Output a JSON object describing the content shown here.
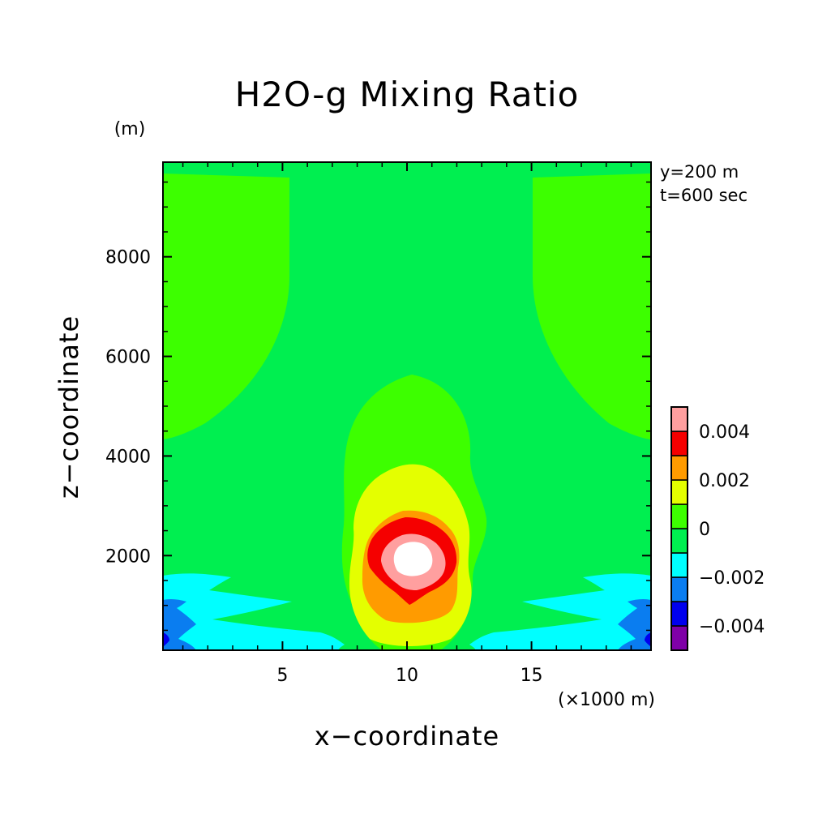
{
  "chart_data": {
    "type": "heatmap",
    "title": "H2O-g Mixing Ratio",
    "xlabel": "x−coordinate",
    "ylabel": "z−coordinate",
    "x_unit": "(×1000 m)",
    "y_unit": "(m)",
    "annotations": [
      "y=200 m",
      "t=600 sec"
    ],
    "xlim": [
      0.2,
      19.8
    ],
    "ylim": [
      100,
      9900
    ],
    "x_ticks": [
      5,
      10,
      15
    ],
    "x_tick_labels": [
      "5",
      "10",
      "15"
    ],
    "y_ticks": [
      2000,
      4000,
      6000,
      8000
    ],
    "y_tick_labels": [
      "2000",
      "4000",
      "6000",
      "8000"
    ],
    "grid": false,
    "legend_position": "right-bottom",
    "colorbar": {
      "levels": [
        -0.005,
        -0.004,
        -0.003,
        -0.002,
        -0.001,
        0,
        0.001,
        0.002,
        0.003,
        0.004,
        0.005
      ],
      "colors": [
        "#7f00a7",
        "#0000ee",
        "#0a7df0",
        "#00ffff",
        "#00ef50",
        "#3dff00",
        "#e4ff00",
        "#ff9b00",
        "#f50000",
        "#ff9f9f",
        "#ffffff"
      ],
      "tick_labels": [
        "0.004",
        "0.002",
        "0",
        "−0.002",
        "−0.004"
      ],
      "tick_values": [
        0.004,
        0.002,
        0,
        -0.002,
        -0.004
      ]
    }
  }
}
